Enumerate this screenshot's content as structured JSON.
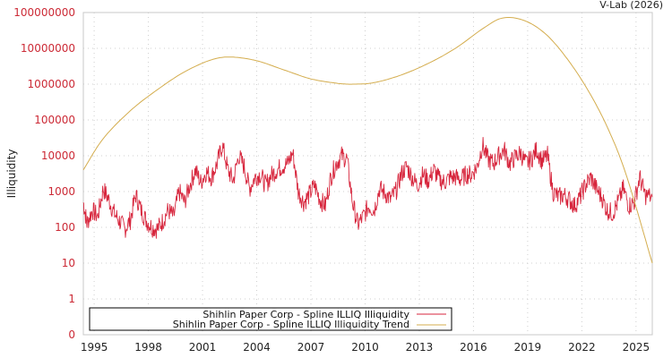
{
  "credit": "V-Lab (2026)",
  "chart_data": {
    "type": "line",
    "title": "",
    "xlabel": "",
    "ylabel": "Illiquidity",
    "yscale": "log",
    "ylim": [
      0,
      100000000
    ],
    "xlim": [
      1994.4,
      2025.9
    ],
    "grid": true,
    "legend_position": "bottom-left",
    "y_ticks": [
      "100000000",
      "10000000",
      "1000000",
      "100000",
      "10000",
      "1000",
      "100",
      "10",
      "1",
      "0"
    ],
    "x_ticks": [
      "1995",
      "1998",
      "2001",
      "2004",
      "2007",
      "2010",
      "2013",
      "2016",
      "2019",
      "2022",
      "2025"
    ],
    "series": [
      {
        "name": "Shihlin Paper Corp - Spline ILLIQ Illiquidity",
        "color": "#d7263d",
        "x": [
          1994.4,
          1994.6,
          1994.9,
          1995.2,
          1995.5,
          1995.8,
          1996.1,
          1996.4,
          1996.7,
          1997.0,
          1997.3,
          1997.6,
          1997.9,
          1998.2,
          1998.5,
          1998.8,
          1999.1,
          1999.4,
          1999.7,
          2000.0,
          2000.3,
          2000.6,
          2000.9,
          2001.2,
          2001.5,
          2001.8,
          2002.1,
          2002.4,
          2002.7,
          2003.0,
          2003.3,
          2003.6,
          2003.9,
          2004.2,
          2004.5,
          2004.8,
          2005.1,
          2005.4,
          2005.7,
          2006.0,
          2006.3,
          2006.6,
          2006.9,
          2007.2,
          2007.5,
          2007.8,
          2008.1,
          2008.4,
          2008.7,
          2009.0,
          2009.3,
          2009.6,
          2009.9,
          2010.2,
          2010.5,
          2010.8,
          2011.1,
          2011.4,
          2011.7,
          2012.0,
          2012.3,
          2012.6,
          2012.9,
          2013.2,
          2013.5,
          2013.8,
          2014.1,
          2014.4,
          2014.7,
          2015.0,
          2015.3,
          2015.6,
          2015.9,
          2016.2,
          2016.5,
          2016.8,
          2017.1,
          2017.4,
          2017.7,
          2018.0,
          2018.3,
          2018.6,
          2018.9,
          2019.2,
          2019.5,
          2019.8,
          2020.1,
          2020.4,
          2020.7,
          2021.0,
          2021.3,
          2021.6,
          2021.9,
          2022.2,
          2022.5,
          2022.8,
          2023.1,
          2023.4,
          2023.7,
          2024.0,
          2024.3,
          2024.6,
          2024.9,
          2025.2,
          2025.5,
          2025.9
        ],
        "values": [
          500,
          130,
          300,
          200,
          1200,
          600,
          250,
          150,
          90,
          160,
          800,
          300,
          150,
          100,
          90,
          150,
          300,
          200,
          1000,
          500,
          1500,
          4000,
          1800,
          3500,
          2500,
          6000,
          20000,
          4000,
          2000,
          10000,
          5000,
          1200,
          2500,
          3000,
          1500,
          2800,
          4000,
          5000,
          6000,
          12000,
          1000,
          500,
          800,
          1500,
          600,
          400,
          2500,
          6000,
          10000,
          8000,
          500,
          120,
          200,
          400,
          300,
          1200,
          900,
          600,
          1000,
          3000,
          5000,
          2500,
          1500,
          3000,
          2000,
          4000,
          2200,
          1800,
          2500,
          2500,
          2200,
          3000,
          3000,
          5000,
          20000,
          8000,
          6000,
          10000,
          15000,
          6000,
          9000,
          12000,
          6000,
          8000,
          15000,
          7000,
          10000,
          1000,
          700,
          800,
          600,
          400,
          700,
          1500,
          2500,
          1200,
          700,
          300,
          250,
          500,
          1200,
          400,
          500,
          2500,
          800,
          700
        ]
      },
      {
        "name": "Shihlin Paper Corp - Spline ILLIQ Illiquidity Trend",
        "color": "#d4ad4e",
        "x": [
          1994.4,
          1995.5,
          1997.0,
          1998.5,
          2000.0,
          2001.5,
          2002.6,
          2004.0,
          2005.5,
          2007.0,
          2008.5,
          2009.4,
          2010.5,
          2012.0,
          2013.5,
          2015.0,
          2016.5,
          2017.6,
          2018.8,
          2020.0,
          2021.2,
          2022.4,
          2023.5,
          2024.5,
          2025.9
        ],
        "values": [
          4000,
          30000,
          180000,
          700000,
          2200000,
          4800000,
          5700000,
          4500000,
          2500000,
          1400000,
          1050000,
          1000000,
          1100000,
          1800000,
          3800000,
          10000000,
          35000000,
          70000000,
          60000000,
          25000000,
          5000000,
          600000,
          50000,
          2500,
          10
        ]
      }
    ]
  },
  "legend": {
    "items": [
      {
        "label": "Shihlin Paper Corp - Spline ILLIQ Illiquidity",
        "color": "#d7263d"
      },
      {
        "label": "Shihlin Paper Corp - Spline ILLIQ Illiquidity Trend",
        "color": "#d4ad4e"
      }
    ]
  }
}
